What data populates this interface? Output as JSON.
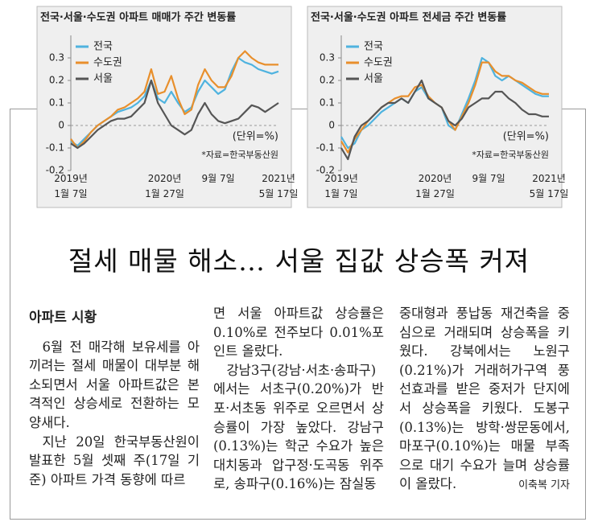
{
  "chart_data": [
    {
      "type": "line",
      "title": "전국·서울·수도권 아파트 매매가 주간 변동률",
      "categories": [
        "2019년\n1월 7일",
        null,
        null,
        null,
        null,
        null,
        null,
        null,
        null,
        null,
        null,
        null,
        null,
        null,
        "2020년\n1월 27일",
        null,
        null,
        null,
        null,
        null,
        null,
        null,
        "9월 7일",
        null,
        null,
        null,
        null,
        null,
        null,
        null,
        null,
        "2021년\n5월 17일"
      ],
      "series": [
        {
          "name": "전국",
          "color": "#4fb3df",
          "values": [
            -0.07,
            -0.09,
            -0.06,
            -0.03,
            0.0,
            0.02,
            0.04,
            0.06,
            0.07,
            0.08,
            0.1,
            0.13,
            0.2,
            0.12,
            0.1,
            0.15,
            0.1,
            0.06,
            0.08,
            0.15,
            0.2,
            0.17,
            0.14,
            0.16,
            0.24,
            0.3,
            0.28,
            0.27,
            0.25,
            0.24,
            0.23,
            0.24
          ]
        },
        {
          "name": "수도권",
          "color": "#e88f2c",
          "values": [
            -0.06,
            -0.1,
            -0.07,
            -0.03,
            0.0,
            0.02,
            0.04,
            0.07,
            0.08,
            0.1,
            0.12,
            0.15,
            0.25,
            0.14,
            0.15,
            0.22,
            0.12,
            0.05,
            0.07,
            0.18,
            0.25,
            0.2,
            0.17,
            0.17,
            0.22,
            0.3,
            0.33,
            0.3,
            0.28,
            0.27,
            0.27,
            0.27
          ]
        },
        {
          "name": "서울",
          "color": "#555555",
          "values": [
            -0.08,
            -0.1,
            -0.08,
            -0.05,
            -0.02,
            0.0,
            0.02,
            0.03,
            0.03,
            0.04,
            0.07,
            0.1,
            0.2,
            0.1,
            0.05,
            0.0,
            -0.02,
            -0.04,
            -0.02,
            0.05,
            0.1,
            0.05,
            0.02,
            0.01,
            0.02,
            0.03,
            0.06,
            0.09,
            0.08,
            0.06,
            0.08,
            0.1
          ]
        }
      ],
      "ylim": [
        -0.2,
        0.4
      ],
      "yticks": [
        -0.2,
        -0.1,
        0,
        0.1,
        0.2,
        0.3
      ],
      "unit_note": "(단위=%)",
      "source": "*자료=한국부동산원",
      "legend": "upper left"
    },
    {
      "type": "line",
      "title": "전국·서울·수도권 아파트 전세금 주간 변동률",
      "categories": [
        "2019년\n1월 7일",
        null,
        null,
        null,
        null,
        null,
        null,
        null,
        null,
        null,
        null,
        null,
        null,
        null,
        "2020년\n1월 27일",
        null,
        null,
        null,
        null,
        null,
        null,
        null,
        "9월 7일",
        null,
        null,
        null,
        null,
        null,
        null,
        null,
        null,
        "2021년\n5월 17일"
      ],
      "series": [
        {
          "name": "전국",
          "color": "#4fb3df",
          "values": [
            -0.05,
            -0.1,
            -0.08,
            -0.02,
            0.0,
            0.03,
            0.06,
            0.08,
            0.1,
            0.12,
            0.1,
            0.15,
            0.17,
            0.12,
            0.1,
            0.08,
            0.0,
            -0.02,
            0.05,
            0.12,
            0.2,
            0.3,
            0.28,
            0.22,
            0.2,
            0.22,
            0.2,
            0.18,
            0.16,
            0.14,
            0.13,
            0.13
          ]
        },
        {
          "name": "수도권",
          "color": "#e88f2c",
          "values": [
            -0.07,
            -0.12,
            -0.06,
            -0.02,
            0.02,
            0.05,
            0.08,
            0.1,
            0.12,
            0.13,
            0.13,
            0.17,
            0.18,
            0.13,
            0.1,
            0.08,
            0.02,
            -0.02,
            0.04,
            0.1,
            0.18,
            0.28,
            0.28,
            0.24,
            0.22,
            0.22,
            0.2,
            0.19,
            0.17,
            0.15,
            0.14,
            0.14
          ]
        },
        {
          "name": "서울",
          "color": "#555555",
          "values": [
            -0.1,
            -0.15,
            -0.05,
            0.0,
            0.02,
            0.05,
            0.08,
            0.1,
            0.1,
            0.12,
            0.1,
            0.15,
            0.2,
            0.12,
            0.1,
            0.08,
            0.02,
            0.0,
            0.03,
            0.08,
            0.1,
            0.12,
            0.12,
            0.15,
            0.15,
            0.12,
            0.1,
            0.07,
            0.05,
            0.05,
            0.04,
            0.04
          ]
        }
      ],
      "ylim": [
        -0.2,
        0.4
      ],
      "yticks": [
        -0.2,
        -0.1,
        0,
        0.1,
        0.2,
        0.3
      ],
      "unit_note": "(단위=%)",
      "source": "*자료=한국부동산원",
      "legend": "upper left"
    }
  ],
  "article": {
    "headline": "절세 매물 해소… 서울 집값 상승폭 커져",
    "section": "아파트 시황",
    "columns": [
      [
        "6월 전 매각해 보유세를 아끼려는 절세 매물이 대부분 해소되면서 서울 아파트값은 본격적인 상승세로 전환하는 모양새다.",
        "지난 20일 한국부동산원이 발표한 5월 셋째 주(17일 기준) 아파트 가격 동향에 따르"
      ],
      [
        "면 서울 아파트값 상승률은 0.10%로 전주보다 0.01%포인트 올랐다.",
        "강남3구(강남·서초·송파구)에서는 서초구(0.20%)가 반포·서초동 위주로 오르면서 상승률이 가장 높았다. 강남구(0.13%)는 학군 수요가 높은 대치동과 압구정·도곡동 위주로, 송파구(0.16%)는 잠실동"
      ],
      [
        "중대형과 풍납동 재건축을 중심으로 거래되며 상승폭을 키웠다. 강북에서는 노원구(0.21%)가 거래허가구역 풍선효과를 받은 중저가 단지에서 상승폭을 키웠다. 도봉구(0.13%)는 방학·쌍문동에서, 마포구(0.10%)는 매물 부족으로 대기 수요가 늘며 상승률이 올랐다."
      ]
    ],
    "byline": "이축복 기자"
  }
}
